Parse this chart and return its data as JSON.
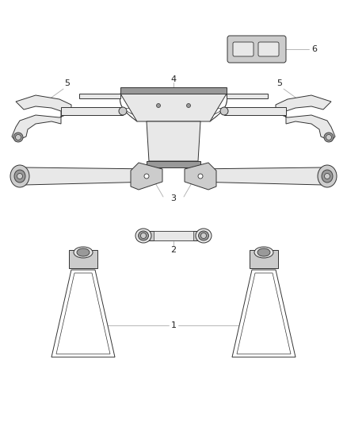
{
  "background_color": "#ffffff",
  "line_color": "#333333",
  "fill_white": "#ffffff",
  "fill_light": "#e8e8e8",
  "fill_med": "#cccccc",
  "fill_dark": "#999999",
  "label_color": "#222222",
  "callout_color": "#aaaaaa"
}
